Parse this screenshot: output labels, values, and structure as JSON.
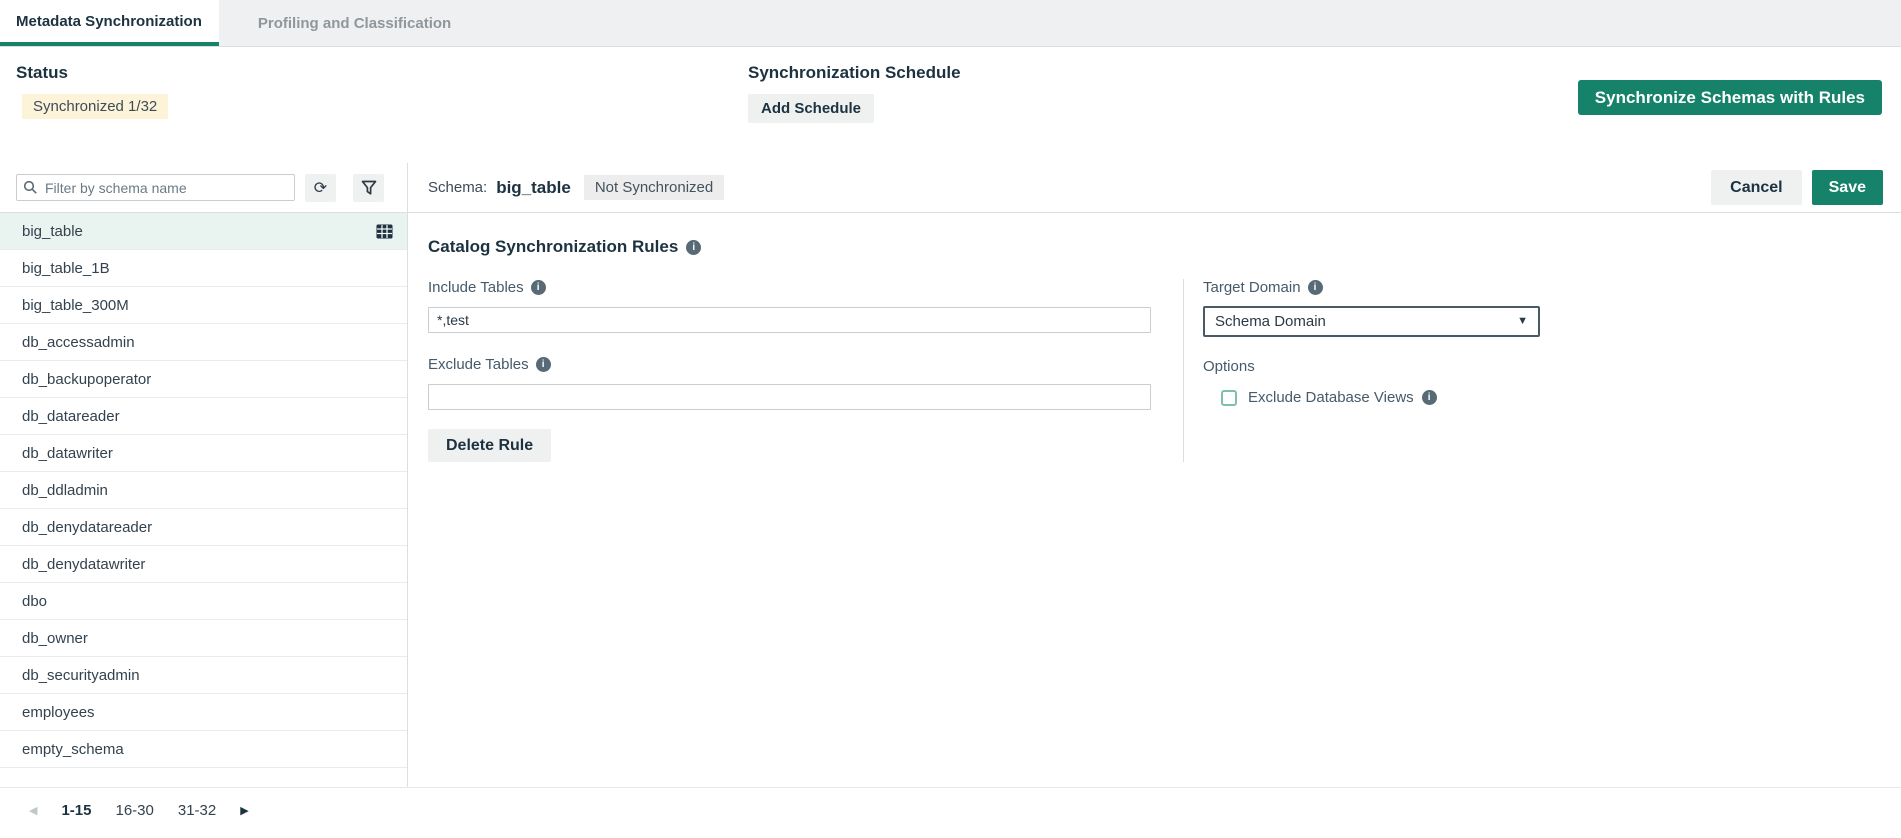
{
  "tabs": [
    {
      "label": "Metadata Synchronization",
      "active": true
    },
    {
      "label": "Profiling and Classification",
      "active": false
    }
  ],
  "topbar": {
    "status_title": "Status",
    "status_badge": "Synchronized 1/32",
    "schedule_title": "Synchronization Schedule",
    "add_schedule_label": "Add Schedule",
    "sync_button_label": "Synchronize Schemas with Rules"
  },
  "sidebar": {
    "filter_placeholder": "Filter by schema name",
    "schemas": [
      {
        "name": "big_table",
        "selected": true,
        "has_table_icon": true
      },
      {
        "name": "big_table_1B",
        "selected": false,
        "has_table_icon": false
      },
      {
        "name": "big_table_300M",
        "selected": false,
        "has_table_icon": false
      },
      {
        "name": "db_accessadmin",
        "selected": false,
        "has_table_icon": false
      },
      {
        "name": "db_backupoperator",
        "selected": false,
        "has_table_icon": false
      },
      {
        "name": "db_datareader",
        "selected": false,
        "has_table_icon": false
      },
      {
        "name": "db_datawriter",
        "selected": false,
        "has_table_icon": false
      },
      {
        "name": "db_ddladmin",
        "selected": false,
        "has_table_icon": false
      },
      {
        "name": "db_denydatareader",
        "selected": false,
        "has_table_icon": false
      },
      {
        "name": "db_denydatawriter",
        "selected": false,
        "has_table_icon": false
      },
      {
        "name": "dbo",
        "selected": false,
        "has_table_icon": false
      },
      {
        "name": "db_owner",
        "selected": false,
        "has_table_icon": false
      },
      {
        "name": "db_securityadmin",
        "selected": false,
        "has_table_icon": false
      },
      {
        "name": "employees",
        "selected": false,
        "has_table_icon": false
      },
      {
        "name": "empty_schema",
        "selected": false,
        "has_table_icon": false
      }
    ],
    "pagination": {
      "pages": [
        "1-15",
        "16-30",
        "31-32"
      ],
      "active_page": "1-15"
    }
  },
  "main": {
    "schema_label": "Schema:",
    "schema_name": "big_table",
    "status_badge": "Not Synchronized",
    "cancel_label": "Cancel",
    "save_label": "Save",
    "section_title": "Catalog Synchronization Rules",
    "include_tables_label": "Include Tables",
    "include_tables_value": "*,test",
    "exclude_tables_label": "Exclude Tables",
    "exclude_tables_value": "",
    "delete_rule_label": "Delete Rule",
    "target_domain_label": "Target Domain",
    "target_domain_value": "Schema Domain",
    "options_label": "Options",
    "exclude_views_label": "Exclude Database Views",
    "exclude_views_checked": false
  },
  "icons": {
    "info_glyph": "i",
    "refresh_glyph": "⟳",
    "caret_down_glyph": "▼",
    "prev_glyph": "◀",
    "next_glyph": "▶"
  },
  "colors": {
    "accent_green": "#16826A",
    "tabbar_bg": "#eef0f1",
    "badge_yellow_bg": "#fcf3d8",
    "badge_gray_bg": "#ededee",
    "selected_row_bg": "#e9f3f0",
    "checkbox_border": "#7fbfae"
  }
}
